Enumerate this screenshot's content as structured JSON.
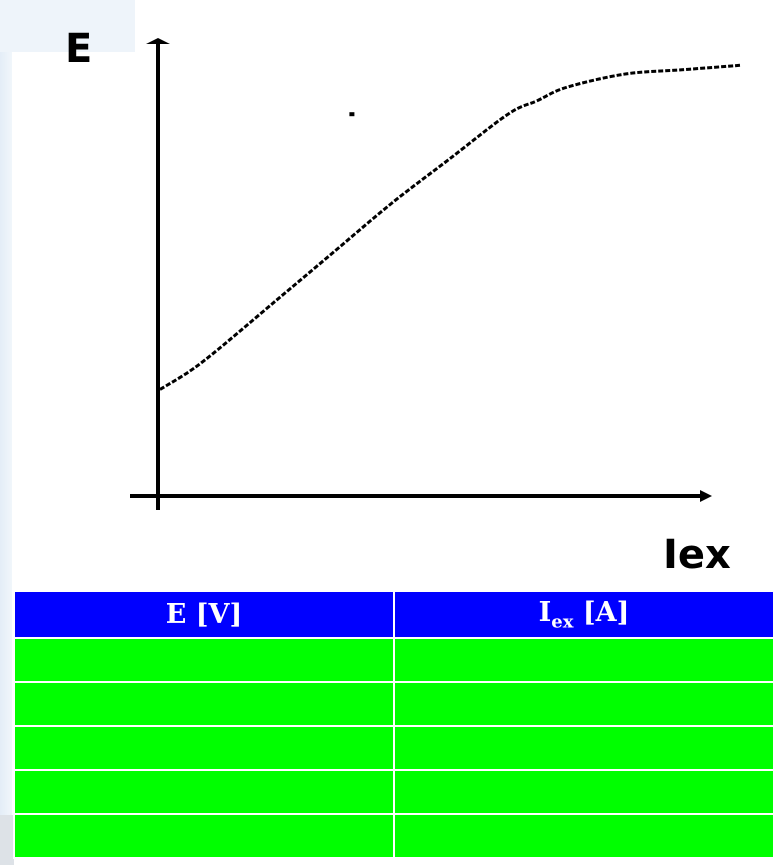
{
  "chart_data": {
    "type": "line",
    "title": "",
    "xlabel": "Iex",
    "ylabel": "E",
    "grid": false,
    "x": [
      0,
      0.05,
      0.1,
      0.2,
      0.3,
      0.4,
      0.5,
      0.6,
      0.65,
      0.7,
      0.8,
      0.9,
      1.0
    ],
    "y": [
      0.24,
      0.28,
      0.33,
      0.44,
      0.55,
      0.66,
      0.76,
      0.86,
      0.89,
      0.92,
      0.95,
      0.96,
      0.97
    ],
    "stray_point": {
      "x": 0.33,
      "y": 0.86
    }
  },
  "table": {
    "headers": [
      {
        "main": "E [V]",
        "sub": "",
        "tail": ""
      },
      {
        "main": "I",
        "sub": "ex",
        "tail": " [A]"
      }
    ],
    "rows": 5
  },
  "colors": {
    "header_bg": "#0000ff",
    "header_text": "#ffffff",
    "cell_bg": "#00ff00",
    "axis": "#000000",
    "curve": "#000000"
  }
}
